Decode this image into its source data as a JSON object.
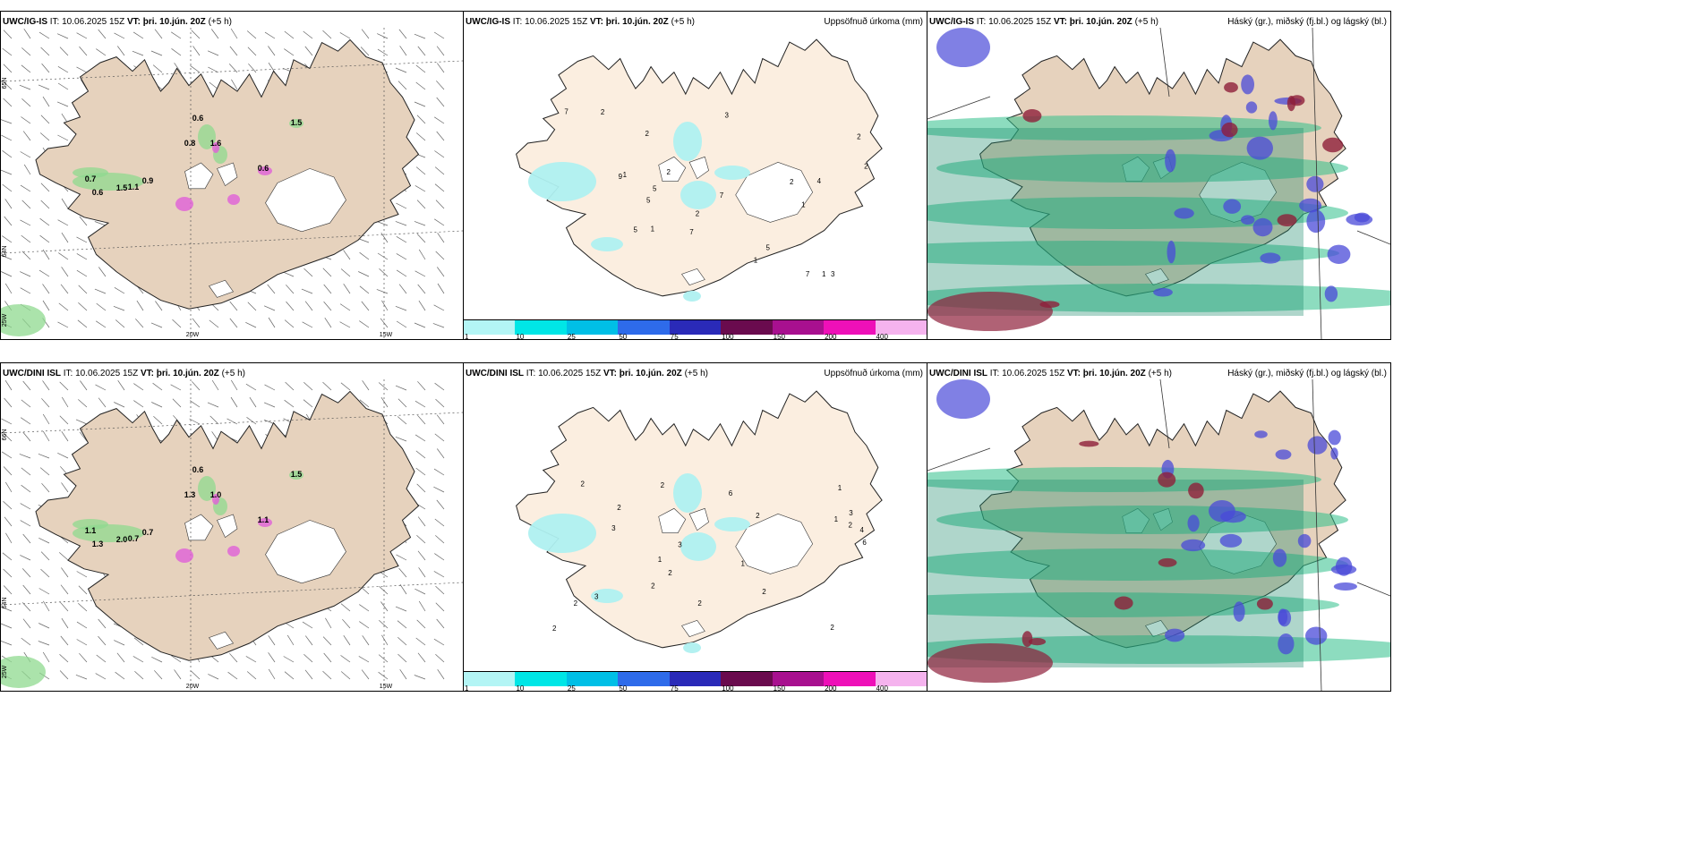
{
  "rows": [
    {
      "model": "UWC/IG-IS",
      "it_label": "IT:",
      "it_value": "10.06.2025 15Z",
      "vt_label": "VT:",
      "vt_value": "þri. 10.jún. 20Z",
      "lead": "(+5 h)",
      "wind_values": [
        "0.6",
        "0.8",
        "1.6",
        "0.7",
        "0.9",
        "0.6",
        "1.5",
        "1.1",
        "0.6",
        "1.5"
      ],
      "precip_values": [
        "2",
        "9",
        "2",
        "1",
        "3",
        "2",
        "7",
        "5",
        "1",
        "2",
        "4",
        "3",
        "7",
        "7",
        "5",
        "5",
        "7",
        "2",
        "2",
        "2",
        "1",
        "1",
        "1",
        "5"
      ],
      "lon_labels": [
        "20W",
        "15W"
      ],
      "lat_labels": [
        "65N",
        "64N",
        "25W"
      ]
    },
    {
      "model": "UWC/DINI ISL",
      "it_label": "IT:",
      "it_value": "10.06.2025 15Z",
      "vt_label": "VT:",
      "vt_value": "þri. 10.jún. 20Z",
      "lead": "(+5 h)",
      "wind_values": [
        "0.6",
        "1.3",
        "1.0",
        "1.1",
        "0.7",
        "1.3",
        "2.0",
        "0.7",
        "1.1",
        "1.5"
      ],
      "precip_values": [
        "6",
        "6",
        "2",
        "2",
        "2",
        "1",
        "1",
        "3",
        "2",
        "2",
        "3",
        "2",
        "1",
        "2",
        "2",
        "2",
        "2",
        "1",
        "4",
        "2",
        "3",
        "3",
        "2"
      ],
      "lon_labels": [
        "20W",
        "15W"
      ],
      "lat_labels": [
        "66N",
        "64N",
        "25W"
      ]
    }
  ],
  "precip_title": "Uppsöfnuð úrkoma (mm)",
  "cloud_title": "Háský (gr.), miðský (fj.bl.) og lágský (bl.)",
  "colorbar": {
    "labels": [
      "1",
      "10",
      "25",
      "50",
      "75",
      "100",
      "150",
      "200",
      "400"
    ],
    "colors": [
      "#b3f5f5",
      "#00e6e6",
      "#00bfe6",
      "#2e6bea",
      "#2a2ab8",
      "#6a0b4e",
      "#a8108f",
      "#ee10b8",
      "#f5b3ee"
    ]
  },
  "colors": {
    "land": "#e6d2bd",
    "land_precip": "#fbeee0",
    "glacier": "#ffffff",
    "precip_light": "#aff0f0",
    "cloud_high": "#2fbf8a",
    "cloud_mid": "#4a4ad8",
    "cloud_low": "#8e1f3a"
  }
}
